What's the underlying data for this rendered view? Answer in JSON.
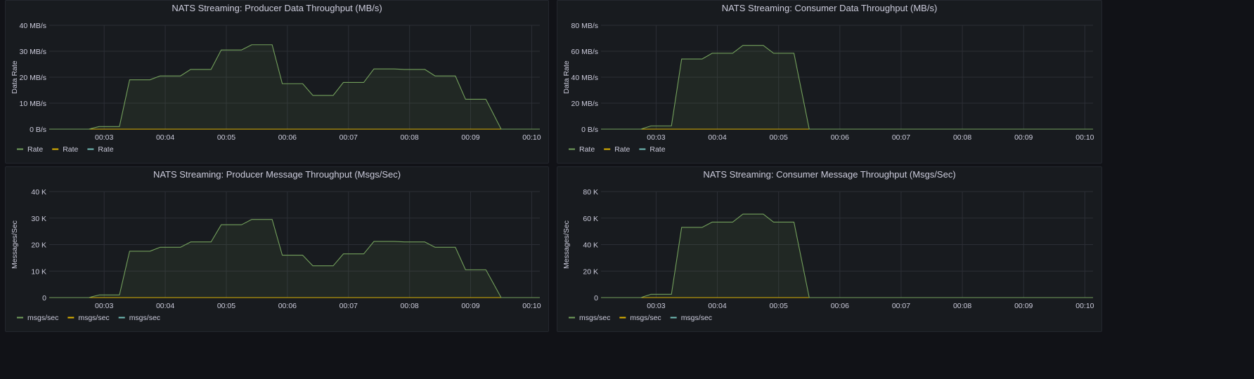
{
  "colors": {
    "background": "#111217",
    "panel": "#181b1f",
    "grid": "#2c2f36",
    "text": "#ccccdc",
    "series": [
      "#73a05c",
      "#e0b400",
      "#73bfb8"
    ],
    "fill": "#73a05c"
  },
  "chart_data": [
    {
      "type": "area",
      "title": "NATS Streaming: Producer Data Throughput (MB/s)",
      "ylabel": "Data Rate",
      "xlabel": "",
      "x_ticks": [
        "00:03",
        "00:04",
        "00:05",
        "00:06",
        "00:07",
        "00:08",
        "00:09",
        "00:10"
      ],
      "xlim": [
        "00:02:06",
        "00:10:08"
      ],
      "y_ticks": [
        "0 B/s",
        "10 MB/s",
        "20 MB/s",
        "30 MB/s",
        "40 MB/s"
      ],
      "ylim": [
        0,
        40
      ],
      "grid": true,
      "legend": "bottom-left",
      "legend_entries": [
        "Rate",
        "Rate",
        "Rate"
      ],
      "series": [
        {
          "name": "Rate",
          "x": [
            "00:02:06",
            "00:02:45",
            "00:02:55",
            "00:03:15",
            "00:03:25",
            "00:03:45",
            "00:03:55",
            "00:04:15",
            "00:04:25",
            "00:04:45",
            "00:04:55",
            "00:05:15",
            "00:05:25",
            "00:05:45",
            "00:05:55",
            "00:06:15",
            "00:06:25",
            "00:06:45",
            "00:06:55",
            "00:07:15",
            "00:07:25",
            "00:07:45",
            "00:07:55",
            "00:08:15",
            "00:08:25",
            "00:08:45",
            "00:08:55",
            "00:09:15",
            "00:09:30",
            "00:10:08"
          ],
          "values": [
            0,
            0,
            1,
            1,
            19,
            19,
            20.5,
            20.5,
            23,
            23,
            30.5,
            30.5,
            32.5,
            32.5,
            17.5,
            17.5,
            13,
            13,
            18,
            18,
            23.2,
            23.2,
            23,
            23,
            20.5,
            20.5,
            11.5,
            11.5,
            0,
            0
          ]
        },
        {
          "name": "Rate",
          "x": [
            "00:02:06",
            "00:10:08"
          ],
          "values": [
            0,
            0
          ]
        },
        {
          "name": "Rate",
          "x": [
            "00:02:06",
            "00:10:08"
          ],
          "values": [
            0,
            0
          ]
        }
      ]
    },
    {
      "type": "area",
      "title": "NATS Streaming: Consumer Data Throughput (MB/s)",
      "ylabel": "Data Rate",
      "xlabel": "",
      "x_ticks": [
        "00:03",
        "00:04",
        "00:05",
        "00:06",
        "00:07",
        "00:08",
        "00:09",
        "00:10"
      ],
      "xlim": [
        "00:02:06",
        "00:10:08"
      ],
      "y_ticks": [
        "0 B/s",
        "20 MB/s",
        "40 MB/s",
        "60 MB/s",
        "80 MB/s"
      ],
      "ylim": [
        0,
        80
      ],
      "grid": true,
      "legend": "bottom-left",
      "legend_entries": [
        "Rate",
        "Rate",
        "Rate"
      ],
      "series": [
        {
          "name": "Rate",
          "x": [
            "00:02:06",
            "00:02:45",
            "00:02:55",
            "00:03:15",
            "00:03:25",
            "00:03:45",
            "00:03:55",
            "00:04:15",
            "00:04:25",
            "00:04:45",
            "00:04:55",
            "00:05:15",
            "00:05:30",
            "00:10:08"
          ],
          "values": [
            0,
            0,
            2.5,
            2.5,
            54,
            54,
            58.5,
            58.5,
            64.5,
            64.5,
            58.5,
            58.5,
            0,
            0
          ]
        },
        {
          "name": "Rate",
          "x": [
            "00:02:06",
            "00:10:08"
          ],
          "values": [
            0,
            0
          ]
        },
        {
          "name": "Rate",
          "x": [
            "00:02:06",
            "00:10:08"
          ],
          "values": [
            0,
            0
          ]
        }
      ]
    },
    {
      "type": "area",
      "title": "NATS Streaming: Producer Message Throughput (Msgs/Sec)",
      "ylabel": "Messages/Sec",
      "xlabel": "",
      "x_ticks": [
        "00:03",
        "00:04",
        "00:05",
        "00:06",
        "00:07",
        "00:08",
        "00:09",
        "00:10"
      ],
      "xlim": [
        "00:02:06",
        "00:10:08"
      ],
      "y_ticks": [
        "0",
        "10 K",
        "20 K",
        "30 K",
        "40 K"
      ],
      "ylim": [
        0,
        40
      ],
      "grid": true,
      "legend": "bottom-left",
      "legend_entries": [
        "msgs/sec",
        "msgs/sec",
        "msgs/sec"
      ],
      "series": [
        {
          "name": "msgs/sec",
          "x": [
            "00:02:06",
            "00:02:45",
            "00:02:55",
            "00:03:15",
            "00:03:25",
            "00:03:45",
            "00:03:55",
            "00:04:15",
            "00:04:25",
            "00:04:45",
            "00:04:55",
            "00:05:15",
            "00:05:25",
            "00:05:45",
            "00:05:55",
            "00:06:15",
            "00:06:25",
            "00:06:45",
            "00:06:55",
            "00:07:15",
            "00:07:25",
            "00:07:45",
            "00:07:55",
            "00:08:15",
            "00:08:25",
            "00:08:45",
            "00:08:55",
            "00:09:15",
            "00:09:30",
            "00:10:08"
          ],
          "values": [
            0,
            0,
            1,
            1,
            17.5,
            17.5,
            19,
            19,
            21,
            21,
            27.5,
            27.5,
            29.5,
            29.5,
            16,
            16,
            12,
            12,
            16.5,
            16.5,
            21.2,
            21.2,
            21,
            21,
            19,
            19,
            10.5,
            10.5,
            0,
            0
          ]
        },
        {
          "name": "msgs/sec",
          "x": [
            "00:02:06",
            "00:10:08"
          ],
          "values": [
            0,
            0
          ]
        },
        {
          "name": "msgs/sec",
          "x": [
            "00:02:06",
            "00:10:08"
          ],
          "values": [
            0,
            0
          ]
        }
      ]
    },
    {
      "type": "area",
      "title": "NATS Streaming: Consumer Message Throughput (Msgs/Sec)",
      "ylabel": "Messages/Sec",
      "xlabel": "",
      "x_ticks": [
        "00:03",
        "00:04",
        "00:05",
        "00:06",
        "00:07",
        "00:08",
        "00:09",
        "00:10"
      ],
      "xlim": [
        "00:02:06",
        "00:10:08"
      ],
      "y_ticks": [
        "0",
        "20 K",
        "40 K",
        "60 K",
        "80 K"
      ],
      "ylim": [
        0,
        80
      ],
      "grid": true,
      "legend": "bottom-left",
      "legend_entries": [
        "msgs/sec",
        "msgs/sec",
        "msgs/sec"
      ],
      "series": [
        {
          "name": "msgs/sec",
          "x": [
            "00:02:06",
            "00:02:45",
            "00:02:55",
            "00:03:15",
            "00:03:25",
            "00:03:45",
            "00:03:55",
            "00:04:15",
            "00:04:25",
            "00:04:45",
            "00:04:55",
            "00:05:15",
            "00:05:30",
            "00:10:08"
          ],
          "values": [
            0,
            0,
            2.5,
            2.5,
            53,
            53,
            57,
            57,
            63,
            63,
            57,
            57,
            0,
            0
          ]
        },
        {
          "name": "msgs/sec",
          "x": [
            "00:02:06",
            "00:10:08"
          ],
          "values": [
            0,
            0
          ]
        },
        {
          "name": "msgs/sec",
          "x": [
            "00:02:06",
            "00:10:08"
          ],
          "values": [
            0,
            0
          ]
        }
      ]
    }
  ]
}
